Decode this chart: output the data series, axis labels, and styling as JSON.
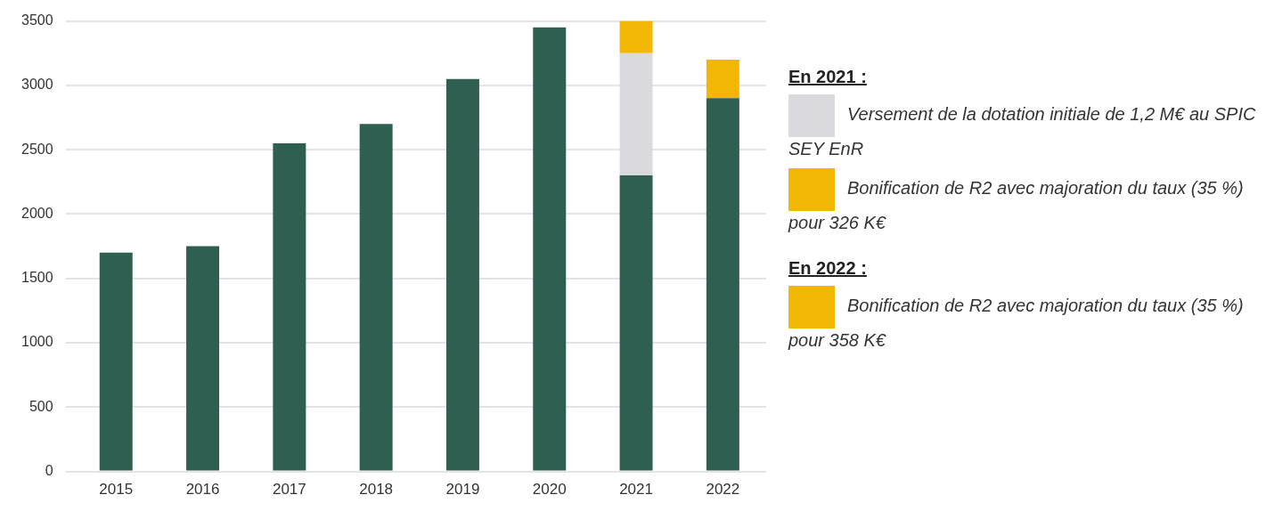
{
  "chart_data": {
    "type": "bar",
    "stacked": true,
    "categories": [
      "2015",
      "2016",
      "2017",
      "2018",
      "2019",
      "2020",
      "2021",
      "2022"
    ],
    "series": [
      {
        "color": "#2f5f50",
        "values": [
          1700,
          1750,
          2550,
          2700,
          3050,
          3450,
          2300,
          2900
        ]
      },
      {
        "color": "#dadade",
        "values": [
          null,
          null,
          null,
          null,
          null,
          null,
          950,
          null
        ]
      },
      {
        "color": "#f2b705",
        "values": [
          null,
          null,
          null,
          null,
          null,
          null,
          250,
          300
        ]
      }
    ],
    "ylim": [
      0,
      3500
    ],
    "yticks": [
      0,
      500,
      1000,
      1500,
      2000,
      2500,
      3000,
      3500
    ],
    "grid": "y",
    "legend": false,
    "annotations": [
      "En 2021 :",
      "Versement de la dotation initiale de 1,2 M€ au SPIC SEY EnR",
      "Bonification de R2 avec majoration du taux (35 %) pour 326 K€",
      "En 2022 :",
      "Bonification de R2 avec majoration du taux (35 %) pour 358 K€"
    ]
  }
}
